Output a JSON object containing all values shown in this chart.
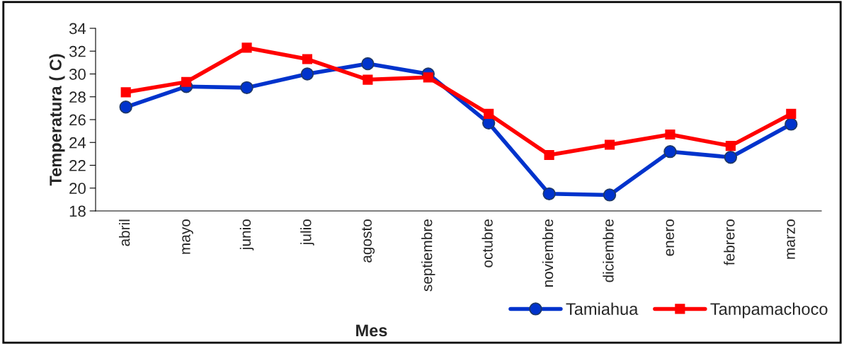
{
  "chart_data": {
    "type": "line",
    "xlabel": "Mes",
    "ylabel": "Temperatura ( C)",
    "categories": [
      "abril",
      "mayo",
      "junio",
      "julio",
      "agosto",
      "septiembre",
      "octubre",
      "noviembre",
      "diciembre",
      "enero",
      "febrero",
      "marzo"
    ],
    "series": [
      {
        "name": "Tamiahua",
        "color": "#0033cc",
        "marker": "circle",
        "values": [
          27.1,
          28.9,
          28.8,
          30.0,
          30.9,
          30.0,
          25.7,
          19.5,
          19.4,
          23.2,
          22.7,
          25.6
        ]
      },
      {
        "name": "Tampamachoco",
        "color": "#ff0000",
        "marker": "square",
        "values": [
          28.4,
          29.3,
          32.3,
          31.3,
          29.5,
          29.7,
          26.5,
          22.9,
          23.8,
          24.7,
          23.7,
          26.5
        ]
      }
    ],
    "ylim": [
      18,
      34
    ],
    "yticks": [
      18,
      20,
      22,
      24,
      26,
      28,
      30,
      32,
      34
    ],
    "grid": false,
    "legend": "bottom right",
    "line_style": "solid"
  }
}
